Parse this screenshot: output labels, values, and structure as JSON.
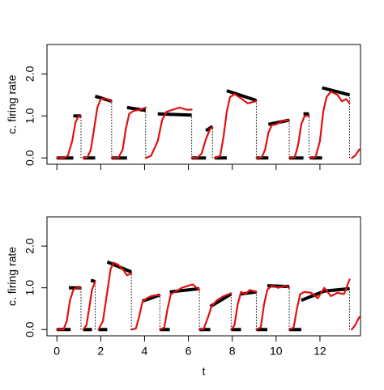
{
  "chart_data": [
    {
      "type": "line",
      "ylabel": "c. firing rate",
      "xlim": [
        -0.45,
        13.85
      ],
      "ylim": [
        -0.15,
        2.7
      ],
      "xticks": [
        0,
        2,
        4,
        6,
        8,
        10,
        12
      ],
      "xtick_labels": false,
      "yticks": [
        {
          "value": 0,
          "label": "0.0"
        },
        {
          "value": 1,
          "label": "1.0"
        },
        {
          "value": 2,
          "label": "2.0"
        }
      ],
      "series": [
        {
          "color": "#000000",
          "x": [
            0,
            0.75,
            null,
            0.75,
            1.1,
            null,
            1.2,
            1.75,
            null,
            1.75,
            2.5,
            null,
            2.5,
            3.2,
            null,
            3.2,
            4.05,
            null,
            4.6,
            6.15,
            null,
            6.15,
            6.8,
            null,
            6.8,
            7.1,
            null,
            7.2,
            7.75,
            null,
            7.75,
            9.1,
            null,
            9.1,
            9.65,
            null,
            9.65,
            10.6,
            null,
            10.6,
            11.25,
            null,
            11.25,
            11.5,
            null,
            11.55,
            12.1,
            null,
            12.1,
            13.35
          ],
          "values": [
            0,
            0,
            null,
            1.0,
            1.0,
            null,
            0,
            0,
            null,
            1.47,
            1.35,
            null,
            0,
            0,
            null,
            1.2,
            1.13,
            null,
            1.05,
            1.02,
            null,
            0,
            0,
            null,
            0.65,
            0.75,
            null,
            0,
            0,
            null,
            1.6,
            1.37,
            null,
            0,
            0,
            null,
            0.8,
            0.9,
            null,
            0,
            0,
            null,
            1.05,
            1.05,
            null,
            0,
            0,
            null,
            1.67,
            1.5
          ]
        },
        {
          "color": "#e01010",
          "x": [
            0,
            0.3,
            0.5,
            0.7,
            0.85,
            1.0,
            1.1,
            null,
            1.2,
            1.4,
            1.55,
            1.7,
            1.85,
            2.0,
            2.2,
            2.5,
            null,
            2.5,
            2.8,
            3.0,
            3.15,
            3.3,
            3.5,
            3.8,
            4.05,
            null,
            4.05,
            4.3,
            4.6,
            4.8,
            5.0,
            5.3,
            5.6,
            5.9,
            6.15,
            null,
            6.15,
            6.4,
            6.6,
            6.8,
            7.0,
            7.1,
            null,
            7.2,
            7.45,
            7.6,
            7.75,
            7.9,
            8.1,
            8.4,
            8.7,
            9.1,
            null,
            9.1,
            9.35,
            9.5,
            9.65,
            9.8,
            10.0,
            10.3,
            10.6,
            null,
            10.6,
            10.85,
            11.0,
            11.15,
            11.3,
            11.5,
            null,
            11.55,
            11.8,
            12.0,
            12.15,
            12.3,
            12.5,
            12.8,
            13.0,
            13.2,
            13.35,
            null,
            13.45,
            13.6,
            13.8
          ],
          "values": [
            0,
            0,
            0.05,
            0.4,
            0.85,
            1.0,
            1.0,
            null,
            0,
            0.02,
            0.2,
            0.7,
            1.2,
            1.4,
            1.42,
            1.35,
            null,
            0,
            0,
            0.2,
            0.7,
            1.05,
            1.12,
            1.15,
            1.2,
            null,
            0,
            0.05,
            0.4,
            0.9,
            1.1,
            1.15,
            1.2,
            1.15,
            1.15,
            null,
            0,
            0,
            0.1,
            0.45,
            0.7,
            0.72,
            null,
            0,
            0.05,
            0.5,
            1.1,
            1.45,
            1.52,
            1.42,
            1.3,
            1.35,
            null,
            0,
            0.02,
            0.2,
            0.6,
            0.78,
            0.8,
            0.88,
            0.9,
            null,
            0,
            0.02,
            0.3,
            0.8,
            1.0,
            1.0,
            null,
            0,
            0.02,
            0.4,
            1.1,
            1.45,
            1.58,
            1.5,
            1.35,
            1.4,
            1.3,
            null,
            0,
            0.05,
            0.2
          ]
        }
      ]
    },
    {
      "type": "line",
      "ylabel": "c. firing rate",
      "xlabel": "t",
      "xlim": [
        -0.45,
        13.85
      ],
      "ylim": [
        -0.15,
        2.7
      ],
      "xticks": [
        0,
        2,
        4,
        6,
        8,
        10,
        12
      ],
      "xtick_labels": true,
      "yticks": [
        {
          "value": 0,
          "label": "0.0"
        },
        {
          "value": 1,
          "label": "1.0"
        },
        {
          "value": 2,
          "label": "2.0"
        }
      ],
      "series": [
        {
          "color": "#000000",
          "x": [
            0,
            0.63,
            null,
            0.55,
            1.1,
            null,
            1.2,
            1.6,
            null,
            1.55,
            1.75,
            null,
            1.9,
            2.3,
            null,
            2.3,
            3.4,
            null,
            3.9,
            4.7,
            null,
            4.7,
            5.15,
            null,
            5.15,
            6.5,
            null,
            6.5,
            7.0,
            null,
            7.0,
            7.95,
            null,
            7.95,
            8.4,
            null,
            8.4,
            9.1,
            null,
            9.1,
            9.6,
            null,
            9.6,
            10.6,
            null,
            10.6,
            11.15,
            null,
            11.15,
            12.2,
            13.35
          ],
          "values": [
            0,
            0,
            null,
            1.0,
            1.0,
            null,
            0,
            0,
            null,
            1.18,
            1.15,
            null,
            0,
            0,
            null,
            1.62,
            1.38,
            null,
            0.68,
            0.83,
            null,
            0,
            0,
            null,
            0.9,
            0.98,
            null,
            0,
            0,
            null,
            0.55,
            0.85,
            null,
            0,
            0,
            null,
            0.85,
            0.9,
            null,
            0,
            0,
            null,
            1.05,
            1.03,
            null,
            0,
            0,
            null,
            0.7,
            0.92,
            0.98
          ]
        },
        {
          "color": "#e01010",
          "x": [
            0,
            0.3,
            0.45,
            0.6,
            0.75,
            0.9,
            1.1,
            null,
            1.2,
            1.35,
            1.5,
            1.6,
            1.75,
            null,
            1.9,
            2.1,
            2.3,
            2.45,
            2.6,
            2.8,
            3.0,
            3.2,
            3.4,
            null,
            3.4,
            3.6,
            3.75,
            3.9,
            4.1,
            4.3,
            4.5,
            4.7,
            null,
            4.7,
            4.9,
            5.05,
            5.2,
            5.4,
            5.7,
            6.0,
            6.2,
            6.5,
            null,
            6.5,
            6.7,
            6.9,
            7.05,
            7.3,
            7.6,
            7.95,
            null,
            7.95,
            8.1,
            8.25,
            8.4,
            8.6,
            8.8,
            9.1,
            null,
            9.1,
            9.3,
            9.45,
            9.6,
            9.8,
            10.1,
            10.4,
            10.6,
            null,
            10.6,
            10.8,
            10.95,
            11.1,
            11.3,
            11.6,
            11.9,
            12.2,
            12.5,
            12.8,
            13.1,
            13.35,
            null,
            13.45,
            13.6,
            13.8
          ],
          "values": [
            0,
            0,
            0.2,
            0.7,
            0.95,
            1.0,
            1.0,
            null,
            0,
            0.1,
            0.6,
            0.95,
            1.15,
            null,
            0,
            0.2,
            0.9,
            1.45,
            1.6,
            1.55,
            1.45,
            1.3,
            1.35,
            null,
            0,
            0.02,
            0.3,
            0.65,
            0.75,
            0.8,
            0.82,
            0.82,
            null,
            0,
            0.05,
            0.5,
            0.85,
            0.9,
            1.0,
            1.05,
            1.08,
            0.95,
            null,
            0,
            0.02,
            0.3,
            0.55,
            0.7,
            0.8,
            0.87,
            null,
            0,
            0.1,
            0.6,
            0.9,
            0.85,
            0.95,
            0.9,
            null,
            0,
            0.05,
            0.6,
            0.95,
            1.05,
            1.0,
            1.05,
            1.0,
            null,
            0,
            0.05,
            0.5,
            0.85,
            0.9,
            0.88,
            0.75,
            1.0,
            0.8,
            0.88,
            0.85,
            1.2,
            null,
            0,
            0.1,
            0.3
          ]
        }
      ]
    }
  ]
}
